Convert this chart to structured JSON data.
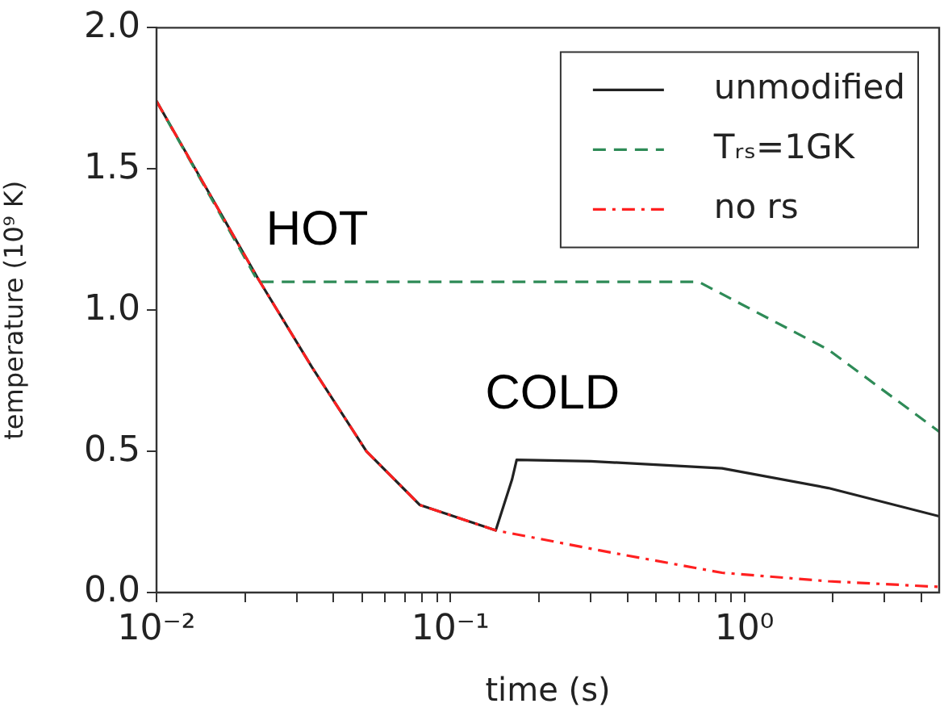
{
  "chart_data": {
    "type": "line",
    "xlabel": "time (s)",
    "ylabel": "temperature (10⁹ K)",
    "log": "x",
    "xlim": [
      0.01,
      4.6
    ],
    "ylim": [
      0,
      2
    ],
    "xticks": [
      {
        "value": 0.01,
        "label": "10⁻²"
      },
      {
        "value": 0.02,
        "label": null
      },
      {
        "value": 0.03,
        "label": null
      },
      {
        "value": 0.04,
        "label": null
      },
      {
        "value": 0.05,
        "label": null
      },
      {
        "value": 0.06,
        "label": null
      },
      {
        "value": 0.07,
        "label": null
      },
      {
        "value": 0.08,
        "label": null
      },
      {
        "value": 0.09,
        "label": null
      },
      {
        "value": 0.1,
        "label": "10⁻¹"
      },
      {
        "value": 0.2,
        "label": null
      },
      {
        "value": 0.3,
        "label": null
      },
      {
        "value": 0.4,
        "label": null
      },
      {
        "value": 0.5,
        "label": null
      },
      {
        "value": 0.6,
        "label": null
      },
      {
        "value": 0.7,
        "label": null
      },
      {
        "value": 0.8,
        "label": null
      },
      {
        "value": 0.9,
        "label": null
      },
      {
        "value": 1,
        "label": "10⁰"
      },
      {
        "value": 2,
        "label": null
      },
      {
        "value": 3,
        "label": null
      },
      {
        "value": 4,
        "label": null
      }
    ],
    "yticks": [
      {
        "value": 0,
        "label": "0.0"
      },
      {
        "value": 0.5,
        "label": "0.5"
      },
      {
        "value": 1,
        "label": "1.0"
      },
      {
        "value": 1.5,
        "label": "1.5"
      },
      {
        "value": 2,
        "label": "2.0"
      }
    ],
    "grid": false,
    "legend": "top right",
    "annotations": [
      "HOT",
      "COLD"
    ],
    "series": [
      {
        "name": "unmodified",
        "color": "#222222",
        "line_style": "solid",
        "x": [
          0.01,
          0.0222,
          0.0337,
          0.0518,
          0.0787,
          0.1426,
          0.162,
          0.168,
          0.3,
          0.84,
          1.93,
          4.6
        ],
        "values": [
          1.74,
          1.11,
          0.8,
          0.5,
          0.31,
          0.22,
          0.4,
          0.47,
          0.465,
          0.44,
          0.37,
          0.27
        ]
      },
      {
        "name": "Tᵣₛ=1GK",
        "color": "#2e8b57",
        "line_style": "dashed",
        "x": [
          0.01,
          0.0222,
          0.7,
          1.93,
          4.6
        ],
        "values": [
          1.74,
          1.1,
          1.1,
          0.86,
          0.57
        ]
      },
      {
        "name": "no rs",
        "color": "#ff2020",
        "line_style": "dashdot",
        "x": [
          0.01,
          0.0222,
          0.0337,
          0.0518,
          0.0787,
          0.1426,
          0.359,
          0.84,
          1.93,
          4.6
        ],
        "values": [
          1.74,
          1.11,
          0.8,
          0.5,
          0.31,
          0.22,
          0.14,
          0.07,
          0.04,
          0.02
        ]
      }
    ]
  }
}
